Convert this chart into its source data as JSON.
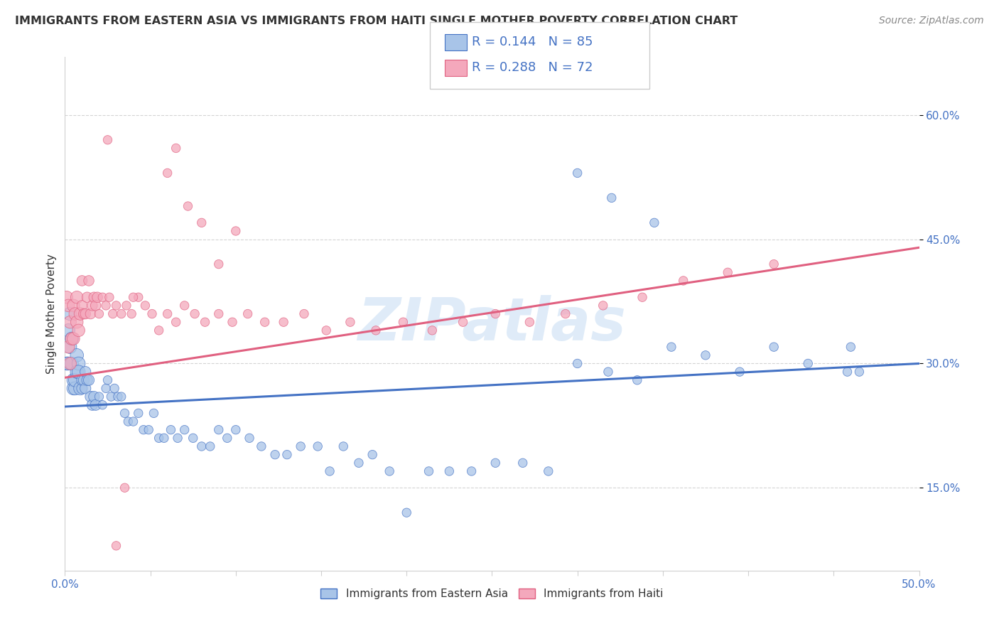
{
  "title": "IMMIGRANTS FROM EASTERN ASIA VS IMMIGRANTS FROM HAITI SINGLE MOTHER POVERTY CORRELATION CHART",
  "source": "Source: ZipAtlas.com",
  "ylabel": "Single Mother Poverty",
  "yticks": [
    0.15,
    0.3,
    0.45,
    0.6
  ],
  "ytick_labels": [
    "15.0%",
    "30.0%",
    "45.0%",
    "60.0%"
  ],
  "xmin": 0.0,
  "xmax": 0.5,
  "ymin": 0.05,
  "ymax": 0.67,
  "legend_R1": "R = 0.144",
  "legend_N1": "N = 85",
  "legend_R2": "R = 0.288",
  "legend_N2": "N = 72",
  "label1": "Immigrants from Eastern Asia",
  "label2": "Immigrants from Haiti",
  "color1": "#a8c4e8",
  "color2": "#f4a8bc",
  "line_color1": "#4472c4",
  "line_color2": "#e06080",
  "text_color_blue": "#4472c4",
  "text_color_pink": "#e06080",
  "watermark": "ZIPatlas",
  "title_color": "#333333",
  "background_color": "#ffffff",
  "grid_color": "#d0d0d0",
  "blue_line_y0": 0.248,
  "blue_line_y1": 0.3,
  "pink_line_y0": 0.283,
  "pink_line_y1": 0.44,
  "eastern_asia_x": [
    0.001,
    0.002,
    0.002,
    0.003,
    0.003,
    0.004,
    0.004,
    0.005,
    0.005,
    0.006,
    0.006,
    0.007,
    0.007,
    0.008,
    0.008,
    0.009,
    0.01,
    0.01,
    0.011,
    0.012,
    0.012,
    0.013,
    0.014,
    0.015,
    0.016,
    0.017,
    0.018,
    0.02,
    0.022,
    0.024,
    0.025,
    0.027,
    0.029,
    0.031,
    0.033,
    0.035,
    0.037,
    0.04,
    0.043,
    0.046,
    0.049,
    0.052,
    0.055,
    0.058,
    0.062,
    0.066,
    0.07,
    0.075,
    0.08,
    0.085,
    0.09,
    0.095,
    0.1,
    0.108,
    0.115,
    0.123,
    0.13,
    0.138,
    0.148,
    0.155,
    0.163,
    0.172,
    0.18,
    0.19,
    0.2,
    0.213,
    0.225,
    0.238,
    0.252,
    0.268,
    0.283,
    0.3,
    0.318,
    0.335,
    0.355,
    0.375,
    0.395,
    0.415,
    0.435,
    0.458,
    0.3,
    0.32,
    0.345,
    0.46,
    0.465
  ],
  "eastern_asia_y": [
    0.3,
    0.34,
    0.3,
    0.32,
    0.36,
    0.33,
    0.3,
    0.27,
    0.28,
    0.27,
    0.28,
    0.29,
    0.31,
    0.3,
    0.29,
    0.27,
    0.27,
    0.28,
    0.28,
    0.27,
    0.29,
    0.28,
    0.28,
    0.26,
    0.25,
    0.26,
    0.25,
    0.26,
    0.25,
    0.27,
    0.28,
    0.26,
    0.27,
    0.26,
    0.26,
    0.24,
    0.23,
    0.23,
    0.24,
    0.22,
    0.22,
    0.24,
    0.21,
    0.21,
    0.22,
    0.21,
    0.22,
    0.21,
    0.2,
    0.2,
    0.22,
    0.21,
    0.22,
    0.21,
    0.2,
    0.19,
    0.19,
    0.2,
    0.2,
    0.17,
    0.2,
    0.18,
    0.19,
    0.17,
    0.12,
    0.17,
    0.17,
    0.17,
    0.18,
    0.18,
    0.17,
    0.3,
    0.29,
    0.28,
    0.32,
    0.31,
    0.29,
    0.32,
    0.3,
    0.29,
    0.53,
    0.5,
    0.47,
    0.32,
    0.29
  ],
  "haiti_x": [
    0.001,
    0.002,
    0.002,
    0.003,
    0.003,
    0.004,
    0.005,
    0.005,
    0.006,
    0.007,
    0.007,
    0.008,
    0.009,
    0.01,
    0.01,
    0.011,
    0.012,
    0.013,
    0.014,
    0.015,
    0.016,
    0.017,
    0.018,
    0.019,
    0.02,
    0.022,
    0.024,
    0.026,
    0.028,
    0.03,
    0.033,
    0.036,
    0.039,
    0.043,
    0.047,
    0.051,
    0.055,
    0.06,
    0.065,
    0.07,
    0.076,
    0.082,
    0.09,
    0.098,
    0.107,
    0.117,
    0.128,
    0.14,
    0.153,
    0.167,
    0.182,
    0.198,
    0.215,
    0.233,
    0.252,
    0.272,
    0.293,
    0.315,
    0.338,
    0.362,
    0.388,
    0.415,
    0.06,
    0.065,
    0.072,
    0.08,
    0.09,
    0.1,
    0.025,
    0.03,
    0.035,
    0.04
  ],
  "haiti_y": [
    0.38,
    0.32,
    0.37,
    0.3,
    0.35,
    0.33,
    0.33,
    0.37,
    0.36,
    0.35,
    0.38,
    0.34,
    0.36,
    0.4,
    0.37,
    0.36,
    0.36,
    0.38,
    0.4,
    0.36,
    0.37,
    0.38,
    0.37,
    0.38,
    0.36,
    0.38,
    0.37,
    0.38,
    0.36,
    0.37,
    0.36,
    0.37,
    0.36,
    0.38,
    0.37,
    0.36,
    0.34,
    0.36,
    0.35,
    0.37,
    0.36,
    0.35,
    0.36,
    0.35,
    0.36,
    0.35,
    0.35,
    0.36,
    0.34,
    0.35,
    0.34,
    0.35,
    0.34,
    0.35,
    0.36,
    0.35,
    0.36,
    0.37,
    0.38,
    0.4,
    0.41,
    0.42,
    0.53,
    0.56,
    0.49,
    0.47,
    0.42,
    0.46,
    0.57,
    0.08,
    0.15,
    0.38
  ]
}
